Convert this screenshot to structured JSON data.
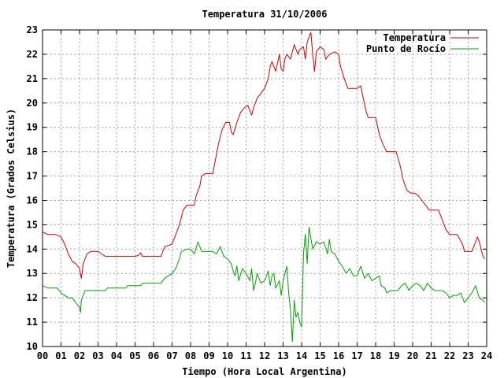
{
  "chart_data": {
    "type": "line",
    "title": "Temperatura 31/10/2006",
    "xlabel": "Tiempo (Hora Local Argentina)",
    "ylabel": "Temperatura (Grados Celsius)",
    "xlim": [
      0,
      24
    ],
    "ylim": [
      10,
      23
    ],
    "x_tick_labels": [
      "00",
      "01",
      "02",
      "03",
      "04",
      "05",
      "06",
      "07",
      "08",
      "09",
      "10",
      "11",
      "12",
      "13",
      "14",
      "15",
      "16",
      "17",
      "18",
      "19",
      "20",
      "21",
      "22",
      "23",
      "24"
    ],
    "y_ticks": [
      10,
      11,
      12,
      13,
      14,
      15,
      16,
      17,
      18,
      19,
      20,
      21,
      22,
      23
    ],
    "grid": true,
    "legend_position": "top-right",
    "series": [
      {
        "name": "Temperatura",
        "color": "#d00000",
        "points": [
          [
            0.0,
            14.7
          ],
          [
            0.3,
            14.6
          ],
          [
            0.5,
            14.6
          ],
          [
            0.7,
            14.6
          ],
          [
            1.0,
            14.5
          ],
          [
            1.2,
            14.2
          ],
          [
            1.4,
            13.8
          ],
          [
            1.6,
            13.5
          ],
          [
            1.8,
            13.4
          ],
          [
            2.0,
            13.2
          ],
          [
            2.1,
            12.8
          ],
          [
            2.2,
            13.4
          ],
          [
            2.4,
            13.8
          ],
          [
            2.6,
            13.9
          ],
          [
            3.0,
            13.9
          ],
          [
            3.2,
            13.8
          ],
          [
            3.4,
            13.7
          ],
          [
            4.0,
            13.7
          ],
          [
            4.5,
            13.7
          ],
          [
            5.0,
            13.7
          ],
          [
            5.2,
            13.75
          ],
          [
            5.3,
            13.85
          ],
          [
            5.4,
            13.7
          ],
          [
            5.6,
            13.7
          ],
          [
            6.0,
            13.7
          ],
          [
            6.4,
            13.7
          ],
          [
            6.6,
            14.1
          ],
          [
            7.0,
            14.2
          ],
          [
            7.2,
            14.6
          ],
          [
            7.4,
            15.0
          ],
          [
            7.6,
            15.6
          ],
          [
            7.8,
            15.8
          ],
          [
            8.2,
            15.8
          ],
          [
            8.3,
            16.2
          ],
          [
            8.5,
            16.6
          ],
          [
            8.6,
            17.0
          ],
          [
            8.8,
            17.1
          ],
          [
            9.2,
            17.1
          ],
          [
            9.3,
            17.5
          ],
          [
            9.4,
            17.9
          ],
          [
            9.5,
            18.3
          ],
          [
            9.6,
            18.6
          ],
          [
            9.7,
            18.9
          ],
          [
            9.9,
            19.2
          ],
          [
            10.1,
            19.2
          ],
          [
            10.2,
            18.8
          ],
          [
            10.3,
            18.7
          ],
          [
            10.5,
            19.2
          ],
          [
            10.7,
            19.6
          ],
          [
            10.9,
            19.8
          ],
          [
            11.1,
            19.9
          ],
          [
            11.3,
            19.5
          ],
          [
            11.4,
            19.8
          ],
          [
            11.6,
            20.2
          ],
          [
            11.8,
            20.4
          ],
          [
            12.0,
            20.6
          ],
          [
            12.2,
            21.0
          ],
          [
            12.3,
            21.5
          ],
          [
            12.4,
            21.7
          ],
          [
            12.6,
            21.3
          ],
          [
            12.8,
            22.0
          ],
          [
            12.9,
            21.4
          ],
          [
            13.0,
            21.3
          ],
          [
            13.1,
            21.8
          ],
          [
            13.2,
            22.0
          ],
          [
            13.4,
            21.8
          ],
          [
            13.5,
            22.1
          ],
          [
            13.6,
            22.4
          ],
          [
            13.7,
            22.2
          ],
          [
            13.8,
            22.0
          ],
          [
            13.9,
            22.2
          ],
          [
            14.1,
            22.3
          ],
          [
            14.2,
            21.8
          ],
          [
            14.3,
            22.5
          ],
          [
            14.4,
            22.7
          ],
          [
            14.5,
            22.9
          ],
          [
            14.6,
            22.0
          ],
          [
            14.7,
            21.3
          ],
          [
            14.8,
            22.1
          ],
          [
            15.0,
            22.3
          ],
          [
            15.2,
            22.2
          ],
          [
            15.3,
            21.8
          ],
          [
            15.5,
            22.0
          ],
          [
            15.8,
            22.1
          ],
          [
            16.0,
            22.0
          ],
          [
            16.1,
            21.5
          ],
          [
            16.3,
            21.0
          ],
          [
            16.5,
            20.6
          ],
          [
            17.0,
            20.6
          ],
          [
            17.2,
            20.7
          ],
          [
            17.3,
            20.3
          ],
          [
            17.5,
            19.6
          ],
          [
            17.6,
            19.4
          ],
          [
            18.0,
            19.4
          ],
          [
            18.2,
            18.7
          ],
          [
            18.4,
            18.3
          ],
          [
            18.6,
            18.0
          ],
          [
            19.1,
            18.0
          ],
          [
            19.3,
            17.5
          ],
          [
            19.5,
            16.8
          ],
          [
            19.7,
            16.4
          ],
          [
            19.9,
            16.3
          ],
          [
            20.1,
            16.3
          ],
          [
            20.3,
            16.2
          ],
          [
            20.5,
            16.0
          ],
          [
            20.7,
            15.8
          ],
          [
            20.9,
            15.6
          ],
          [
            21.4,
            15.6
          ],
          [
            21.6,
            15.2
          ],
          [
            21.8,
            14.8
          ],
          [
            22.0,
            14.6
          ],
          [
            22.4,
            14.6
          ],
          [
            22.7,
            14.2
          ],
          [
            22.8,
            13.9
          ],
          [
            23.2,
            13.9
          ],
          [
            23.4,
            14.3
          ],
          [
            23.5,
            14.5
          ],
          [
            23.6,
            14.3
          ],
          [
            23.8,
            13.7
          ],
          [
            23.9,
            13.6
          ]
        ]
      },
      {
        "name": "Punto de Rocío",
        "color": "#00a000",
        "points": [
          [
            0.0,
            12.5
          ],
          [
            0.3,
            12.4
          ],
          [
            0.5,
            12.4
          ],
          [
            0.8,
            12.4
          ],
          [
            1.0,
            12.2
          ],
          [
            1.2,
            12.1
          ],
          [
            1.4,
            12.0
          ],
          [
            1.6,
            12.0
          ],
          [
            1.8,
            11.8
          ],
          [
            2.0,
            11.6
          ],
          [
            2.05,
            11.4
          ],
          [
            2.1,
            11.9
          ],
          [
            2.3,
            12.3
          ],
          [
            2.8,
            12.3
          ],
          [
            3.0,
            12.3
          ],
          [
            3.4,
            12.3
          ],
          [
            3.5,
            12.4
          ],
          [
            4.0,
            12.4
          ],
          [
            4.5,
            12.4
          ],
          [
            4.6,
            12.5
          ],
          [
            5.0,
            12.5
          ],
          [
            5.3,
            12.5
          ],
          [
            5.4,
            12.6
          ],
          [
            6.0,
            12.6
          ],
          [
            6.4,
            12.6
          ],
          [
            6.6,
            12.8
          ],
          [
            7.0,
            13.0
          ],
          [
            7.2,
            13.2
          ],
          [
            7.4,
            13.6
          ],
          [
            7.5,
            13.9
          ],
          [
            7.8,
            14.0
          ],
          [
            8.0,
            14.0
          ],
          [
            8.2,
            13.8
          ],
          [
            8.4,
            14.3
          ],
          [
            8.6,
            13.9
          ],
          [
            9.0,
            13.9
          ],
          [
            9.2,
            13.9
          ],
          [
            9.4,
            13.8
          ],
          [
            9.6,
            14.1
          ],
          [
            9.8,
            13.7
          ],
          [
            10.0,
            13.6
          ],
          [
            10.2,
            13.4
          ],
          [
            10.3,
            13.1
          ],
          [
            10.4,
            12.9
          ],
          [
            10.5,
            13.3
          ],
          [
            10.6,
            12.7
          ],
          [
            10.8,
            13.2
          ],
          [
            11.0,
            13.0
          ],
          [
            11.2,
            12.7
          ],
          [
            11.3,
            13.2
          ],
          [
            11.4,
            12.3
          ],
          [
            11.5,
            12.6
          ],
          [
            11.6,
            13.0
          ],
          [
            11.8,
            12.6
          ],
          [
            12.0,
            12.7
          ],
          [
            12.2,
            13.1
          ],
          [
            12.3,
            12.5
          ],
          [
            12.4,
            12.9
          ],
          [
            12.5,
            13.0
          ],
          [
            12.6,
            12.4
          ],
          [
            12.8,
            12.7
          ],
          [
            12.9,
            12.1
          ],
          [
            13.0,
            12.7
          ],
          [
            13.2,
            13.3
          ],
          [
            13.3,
            12.2
          ],
          [
            13.4,
            11.5
          ],
          [
            13.5,
            10.2
          ],
          [
            13.6,
            11.9
          ],
          [
            13.7,
            11.2
          ],
          [
            13.8,
            11.4
          ],
          [
            13.9,
            11.0
          ],
          [
            14.0,
            10.8
          ],
          [
            14.1,
            13.8
          ],
          [
            14.2,
            14.6
          ],
          [
            14.3,
            13.4
          ],
          [
            14.4,
            14.9
          ],
          [
            14.6,
            14.0
          ],
          [
            14.8,
            14.3
          ],
          [
            15.0,
            14.2
          ],
          [
            15.2,
            14.3
          ],
          [
            15.4,
            13.8
          ],
          [
            15.5,
            14.4
          ],
          [
            15.6,
            13.9
          ],
          [
            15.8,
            13.8
          ],
          [
            16.0,
            13.5
          ],
          [
            16.2,
            13.3
          ],
          [
            16.4,
            13.0
          ],
          [
            16.6,
            13.2
          ],
          [
            16.8,
            12.9
          ],
          [
            17.0,
            12.9
          ],
          [
            17.2,
            13.3
          ],
          [
            17.4,
            12.8
          ],
          [
            17.6,
            13.0
          ],
          [
            17.8,
            12.7
          ],
          [
            18.0,
            12.8
          ],
          [
            18.2,
            12.9
          ],
          [
            18.3,
            12.5
          ],
          [
            18.5,
            12.4
          ],
          [
            18.6,
            12.2
          ],
          [
            18.8,
            12.3
          ],
          [
            19.2,
            12.3
          ],
          [
            19.4,
            12.5
          ],
          [
            19.6,
            12.6
          ],
          [
            19.8,
            12.3
          ],
          [
            20.0,
            12.5
          ],
          [
            20.2,
            12.6
          ],
          [
            20.4,
            12.5
          ],
          [
            20.6,
            12.3
          ],
          [
            20.8,
            12.6
          ],
          [
            21.0,
            12.4
          ],
          [
            21.2,
            12.3
          ],
          [
            21.6,
            12.3
          ],
          [
            21.8,
            12.2
          ],
          [
            22.0,
            12.0
          ],
          [
            22.2,
            12.1
          ],
          [
            22.4,
            12.1
          ],
          [
            22.6,
            12.2
          ],
          [
            22.8,
            11.8
          ],
          [
            23.0,
            12.0
          ],
          [
            23.2,
            12.2
          ],
          [
            23.4,
            12.5
          ],
          [
            23.6,
            12.0
          ],
          [
            23.8,
            11.9
          ],
          [
            23.9,
            11.8
          ]
        ]
      }
    ]
  }
}
